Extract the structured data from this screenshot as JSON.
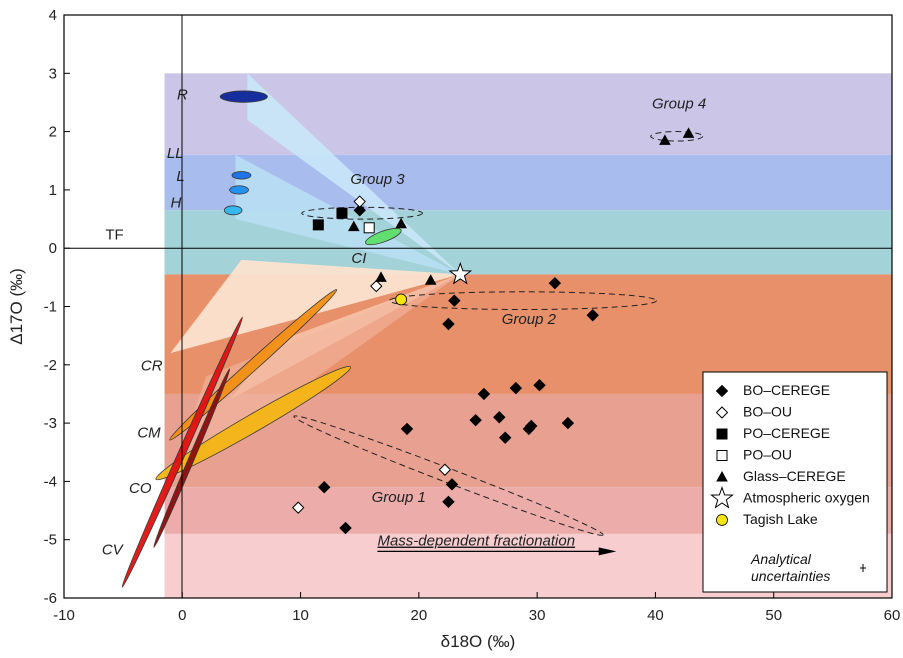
{
  "chart_data": {
    "type": "scatter",
    "xlabel": "δ18O (‰)",
    "ylabel": "Δ17O (‰)",
    "xlim": [
      -10,
      60
    ],
    "ylim": [
      -6,
      4
    ],
    "xticks": [
      -10,
      0,
      10,
      20,
      30,
      40,
      50,
      60
    ],
    "yticks": [
      -6,
      -5,
      -4,
      -3,
      -2,
      -1,
      0,
      1,
      2,
      3,
      4
    ],
    "series": [
      {
        "name": "BO–CEREGE",
        "marker": "diamond-filled",
        "color": "#000000",
        "points": [
          [
            15.0,
            0.65
          ],
          [
            23.0,
            -0.9
          ],
          [
            22.5,
            -1.3
          ],
          [
            31.5,
            -0.6
          ],
          [
            34.7,
            -1.15
          ],
          [
            25.5,
            -2.5
          ],
          [
            28.2,
            -2.4
          ],
          [
            30.2,
            -2.35
          ],
          [
            24.8,
            -2.95
          ],
          [
            26.8,
            -2.9
          ],
          [
            19.0,
            -3.1
          ],
          [
            27.3,
            -3.25
          ],
          [
            29.5,
            -3.05
          ],
          [
            29.3,
            -3.1
          ],
          [
            32.6,
            -3.0
          ],
          [
            12.0,
            -4.1
          ],
          [
            22.8,
            -4.05
          ],
          [
            22.5,
            -4.35
          ],
          [
            13.8,
            -4.8
          ]
        ]
      },
      {
        "name": "BO–OU",
        "marker": "diamond-open",
        "color": "#000000",
        "points": [
          [
            15.0,
            0.8
          ],
          [
            16.4,
            -0.65
          ],
          [
            22.2,
            -3.8
          ],
          [
            9.8,
            -4.45
          ]
        ]
      },
      {
        "name": "PO–CEREGE",
        "marker": "square-filled",
        "color": "#000000",
        "points": [
          [
            11.5,
            0.4
          ],
          [
            13.5,
            0.6
          ]
        ]
      },
      {
        "name": "PO–OU",
        "marker": "square-open",
        "color": "#000000",
        "points": [
          [
            15.8,
            0.35
          ]
        ]
      },
      {
        "name": "Glass–CEREGE",
        "marker": "triangle-filled",
        "color": "#000000",
        "points": [
          [
            14.5,
            0.37
          ],
          [
            18.5,
            0.42
          ],
          [
            16.8,
            -0.5
          ],
          [
            21.0,
            -0.55
          ],
          [
            40.8,
            1.85
          ],
          [
            42.8,
            1.97
          ]
        ]
      },
      {
        "name": "Atmospheric oxygen",
        "marker": "star-open",
        "color": "#000000",
        "points": [
          [
            23.5,
            -0.45
          ]
        ]
      },
      {
        "name": "Tagish Lake",
        "marker": "circle-yellow",
        "color": "#f5e50a",
        "points": [
          [
            18.5,
            -0.88
          ]
        ]
      }
    ],
    "legend": {
      "entries": [
        {
          "label": "BO–CEREGE",
          "marker": "diamond-filled"
        },
        {
          "label": "BO–OU",
          "marker": "diamond-open"
        },
        {
          "label": "PO–CEREGE",
          "marker": "square-filled"
        },
        {
          "label": "PO–OU",
          "marker": "square-open"
        },
        {
          "label": "Glass–CEREGE",
          "marker": "triangle-filled"
        },
        {
          "label": "Atmospheric oxygen",
          "marker": "star-open"
        },
        {
          "label": "Tagish Lake",
          "marker": "circle-yellow"
        }
      ],
      "uncertainty_label": [
        "Analytical",
        "uncertainties"
      ],
      "placement": "bottom-right"
    },
    "reference_line_label": "TF",
    "bands": [
      {
        "y": [
          1.6,
          3.0
        ],
        "color": "#cbc6e8"
      },
      {
        "y": [
          0.65,
          1.6
        ],
        "color": "#a8bcee"
      },
      {
        "y": [
          -0.45,
          0.65
        ],
        "color": "#a3d3d8"
      },
      {
        "y": [
          -2.5,
          -0.45
        ],
        "color": "#e8906a"
      },
      {
        "y": [
          -4.1,
          -2.5
        ],
        "color": "#e8a090"
      },
      {
        "y": [
          -4.9,
          -4.1
        ],
        "color": "#ebacaa"
      },
      {
        "y": [
          -6.0,
          -4.9
        ],
        "color": "#f7cdd0"
      }
    ],
    "regions": [
      {
        "label": "R",
        "color": "#0d259a"
      },
      {
        "label": "LL",
        "color": "#1a6ee8"
      },
      {
        "label": "L",
        "color": "#208ef0"
      },
      {
        "label": "H",
        "color": "#30b8ee"
      },
      {
        "label": "CI",
        "color": "#5de06a"
      },
      {
        "label": "CR",
        "color": "#f39015"
      },
      {
        "label": "CM",
        "color": "#f5b615"
      },
      {
        "label": "CO",
        "color": "#8a0d0d"
      },
      {
        "label": "CV",
        "color": "#e01010"
      }
    ],
    "groups": [
      "Group 1",
      "Group 2",
      "Group 3",
      "Group 4"
    ],
    "annotation": "Mass-dependent fractionation"
  }
}
